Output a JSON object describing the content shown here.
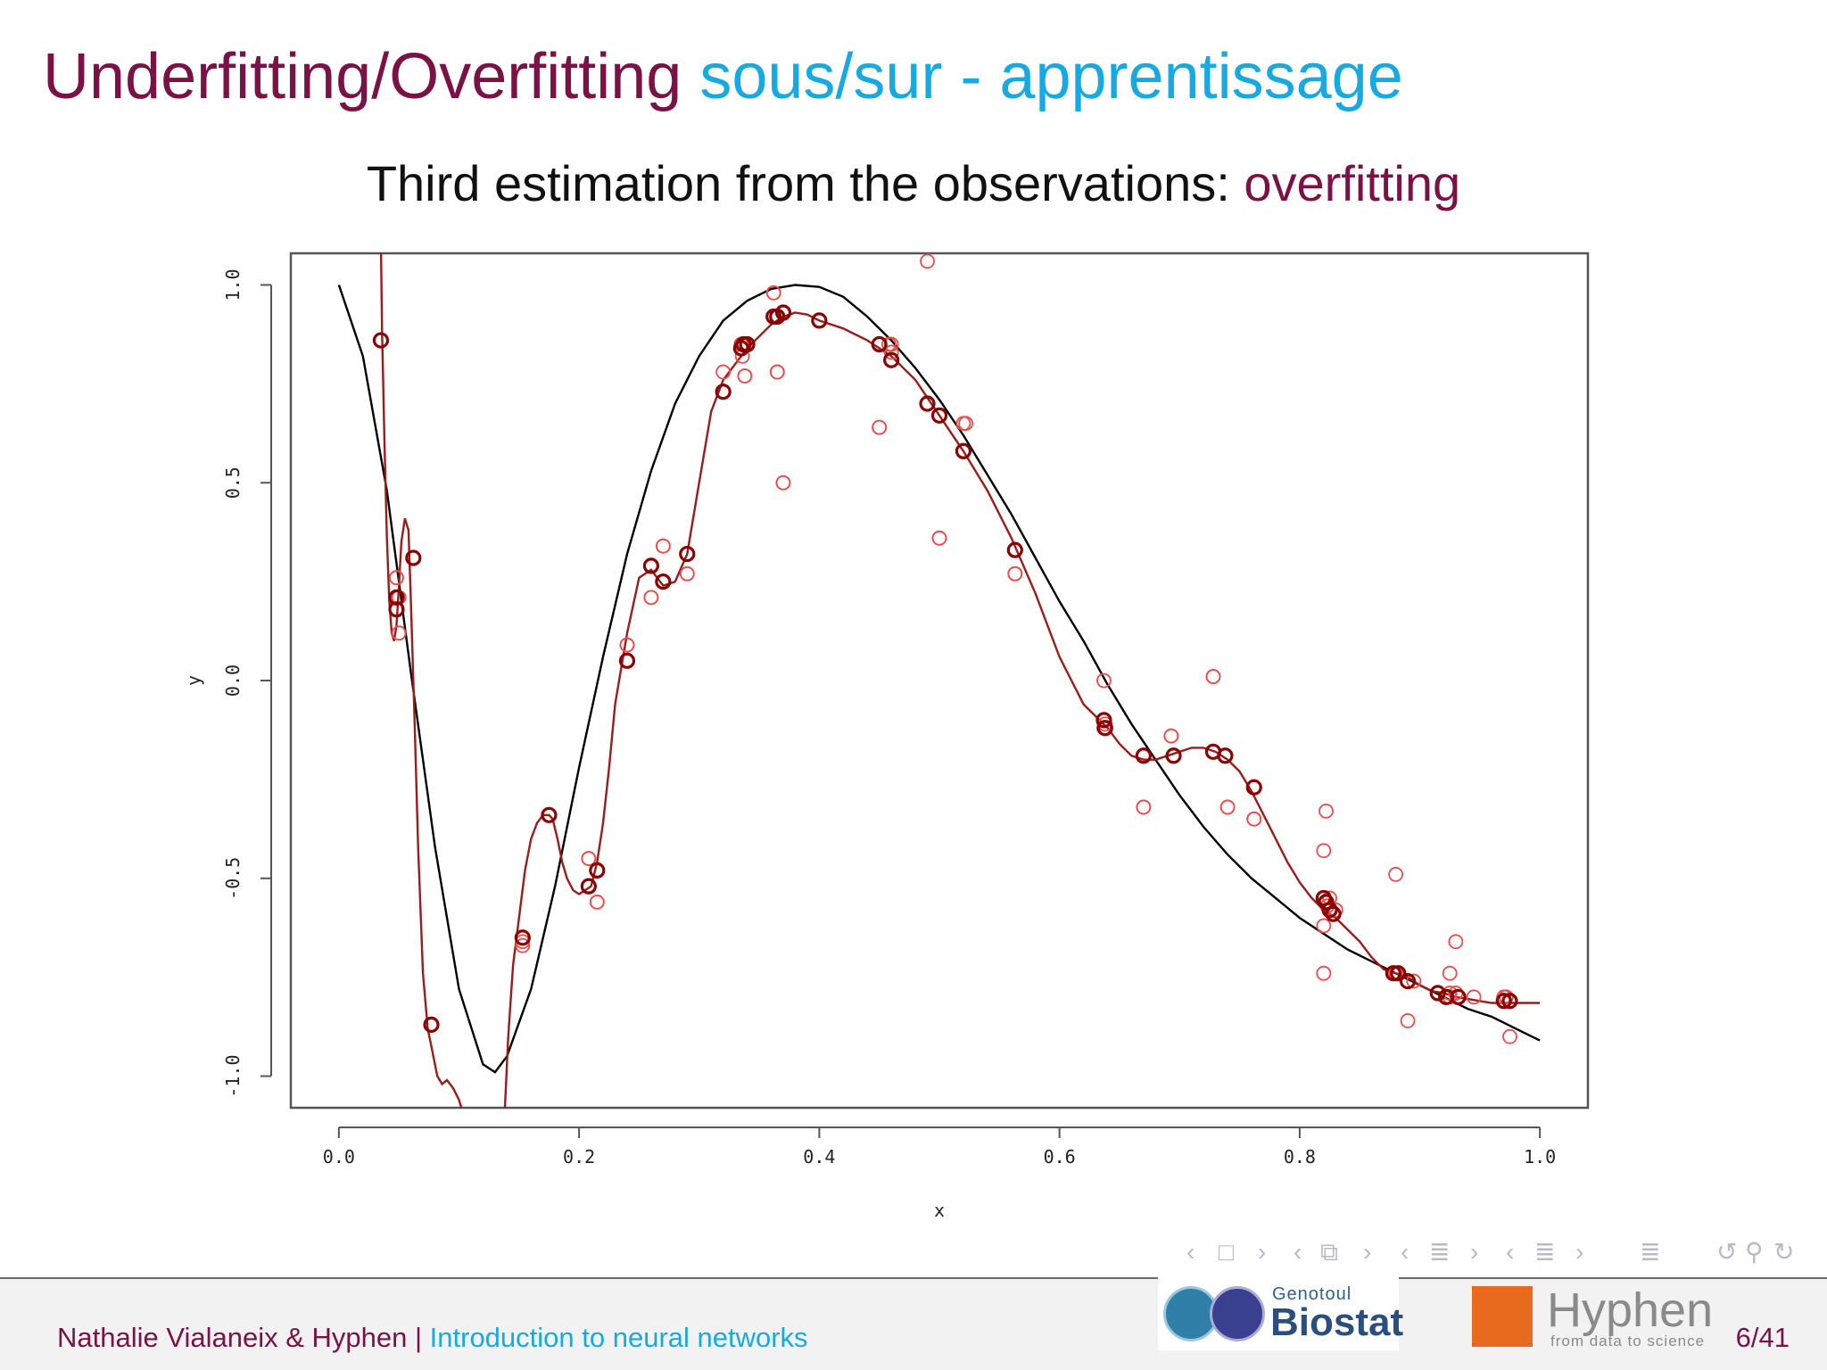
{
  "title": {
    "part1": "Underfitting/Overfitting",
    "part2": "sous/sur - apprentissage"
  },
  "subtitle": {
    "text": "Third estimation from the observations: ",
    "highlight": "overfitting"
  },
  "chart_data": {
    "type": "scatter",
    "title": "",
    "xlabel": "x",
    "ylabel": "y",
    "xlim": [
      -0.04,
      1.04
    ],
    "ylim": [
      -1.08,
      1.08
    ],
    "xticks": [
      "0.0",
      "0.2",
      "0.4",
      "0.6",
      "0.8",
      "1.0"
    ],
    "yticks": [
      "-1.0",
      "-0.5",
      "0.0",
      "0.5",
      "1.0"
    ],
    "colors": {
      "true_curve": "#000000",
      "fit_curve": "#9b1c1c",
      "observed": "#ef4a4a",
      "fitted": "#8b0000"
    },
    "series": [
      {
        "type": "line",
        "x": [
          0.0,
          0.02,
          0.04,
          0.06,
          0.08,
          0.1,
          0.12,
          0.13,
          0.14,
          0.16,
          0.18,
          0.2,
          0.22,
          0.24,
          0.26,
          0.28,
          0.3,
          0.32,
          0.34,
          0.36,
          0.38,
          0.4,
          0.42,
          0.44,
          0.46,
          0.48,
          0.5,
          0.52,
          0.54,
          0.56,
          0.58,
          0.6,
          0.62,
          0.64,
          0.66,
          0.68,
          0.7,
          0.72,
          0.74,
          0.76,
          0.78,
          0.8,
          0.82,
          0.84,
          0.86,
          0.88,
          0.9,
          0.92,
          0.94,
          0.96,
          0.98,
          1.0
        ],
        "y": [
          1.0,
          0.82,
          0.48,
          0.02,
          -0.42,
          -0.78,
          -0.97,
          -0.99,
          -0.95,
          -0.78,
          -0.52,
          -0.22,
          0.06,
          0.32,
          0.53,
          0.7,
          0.82,
          0.91,
          0.96,
          0.99,
          1.0,
          0.995,
          0.97,
          0.92,
          0.86,
          0.79,
          0.71,
          0.62,
          0.52,
          0.42,
          0.31,
          0.2,
          0.1,
          -0.01,
          -0.11,
          -0.2,
          -0.29,
          -0.37,
          -0.44,
          -0.5,
          -0.55,
          -0.6,
          -0.64,
          -0.68,
          -0.71,
          -0.74,
          -0.77,
          -0.8,
          -0.83,
          -0.85,
          -0.88,
          -0.91
        ]
      },
      {
        "type": "line",
        "x": [
          0.035,
          0.036,
          0.038,
          0.04,
          0.042,
          0.044,
          0.046,
          0.048,
          0.05,
          0.052,
          0.055,
          0.058,
          0.06,
          0.063,
          0.066,
          0.07,
          0.074,
          0.078,
          0.082,
          0.086,
          0.09,
          0.095,
          0.1,
          0.104
        ],
        "y": [
          1.1,
          0.88,
          0.6,
          0.36,
          0.2,
          0.12,
          0.1,
          0.14,
          0.24,
          0.35,
          0.41,
          0.38,
          0.2,
          -0.1,
          -0.42,
          -0.74,
          -0.88,
          -0.94,
          -1.0,
          -1.02,
          -1.01,
          -1.03,
          -1.06,
          -1.1
        ]
      },
      {
        "type": "line",
        "x": [
          0.138,
          0.141,
          0.145,
          0.15,
          0.155,
          0.16,
          0.165,
          0.17,
          0.175,
          0.178,
          0.182,
          0.186,
          0.19,
          0.195,
          0.2,
          0.205,
          0.21,
          0.215,
          0.22,
          0.225,
          0.23,
          0.24,
          0.25,
          0.26,
          0.27,
          0.28,
          0.29,
          0.3,
          0.31,
          0.32,
          0.33,
          0.34,
          0.35,
          0.36,
          0.37,
          0.38,
          0.39,
          0.4,
          0.42,
          0.44,
          0.46,
          0.48,
          0.5,
          0.52,
          0.54,
          0.56,
          0.58,
          0.6,
          0.62,
          0.63,
          0.64,
          0.65,
          0.66,
          0.67,
          0.68,
          0.69,
          0.7,
          0.71,
          0.72,
          0.73,
          0.74,
          0.75,
          0.76,
          0.77,
          0.78,
          0.79,
          0.8,
          0.81,
          0.82,
          0.83,
          0.84,
          0.85,
          0.86,
          0.87,
          0.88,
          0.89,
          0.9,
          0.91,
          0.92,
          0.93,
          0.94,
          0.95,
          0.96,
          0.97,
          0.98,
          0.99,
          1.0
        ],
        "y": [
          -1.1,
          -0.9,
          -0.72,
          -0.6,
          -0.48,
          -0.4,
          -0.36,
          -0.34,
          -0.34,
          -0.35,
          -0.4,
          -0.46,
          -0.5,
          -0.53,
          -0.54,
          -0.53,
          -0.52,
          -0.46,
          -0.36,
          -0.22,
          -0.06,
          0.12,
          0.26,
          0.28,
          0.24,
          0.25,
          0.32,
          0.5,
          0.68,
          0.76,
          0.8,
          0.84,
          0.87,
          0.9,
          0.92,
          0.93,
          0.925,
          0.91,
          0.89,
          0.86,
          0.82,
          0.76,
          0.67,
          0.58,
          0.48,
          0.36,
          0.22,
          0.06,
          -0.06,
          -0.09,
          -0.12,
          -0.16,
          -0.19,
          -0.2,
          -0.2,
          -0.19,
          -0.18,
          -0.17,
          -0.17,
          -0.18,
          -0.2,
          -0.23,
          -0.28,
          -0.34,
          -0.4,
          -0.46,
          -0.51,
          -0.55,
          -0.58,
          -0.6,
          -0.63,
          -0.66,
          -0.7,
          -0.73,
          -0.74,
          -0.75,
          -0.77,
          -0.785,
          -0.79,
          -0.8,
          -0.805,
          -0.81,
          -0.815,
          -0.815,
          -0.815,
          -0.815,
          -0.815
        ]
      },
      {
        "type": "scatter",
        "x": [
          0.035,
          0.048,
          0.05,
          0.05,
          0.062,
          0.077,
          0.153,
          0.175,
          0.208,
          0.215,
          0.24,
          0.26,
          0.27,
          0.29,
          0.32,
          0.335,
          0.336,
          0.338,
          0.34,
          0.362,
          0.365,
          0.37,
          0.49,
          0.458,
          0.46,
          0.45,
          0.5,
          0.52,
          0.563,
          0.637,
          0.637,
          0.638,
          0.67,
          0.693,
          0.728,
          0.74,
          0.762,
          0.82,
          0.822,
          0.823,
          0.825,
          0.83,
          0.88,
          0.88,
          0.89,
          0.925,
          0.93,
          0.93,
          0.975,
          0.97,
          0.972,
          0.975,
          0.88,
          0.895,
          0.925,
          0.945,
          0.925,
          0.825,
          0.82,
          0.82,
          0.728,
          0.74,
          0.762,
          0.693,
          0.67,
          0.637,
          0.563,
          0.5,
          0.45,
          0.522,
          0.46,
          0.37,
          0.365,
          0.362,
          0.335,
          0.338,
          0.27,
          0.26,
          0.24,
          0.29,
          0.208,
          0.215,
          0.153,
          0.05,
          0.048
        ],
        "y": [
          0.86,
          0.26,
          0.21,
          0.12,
          0.31,
          -0.87,
          -0.66,
          -0.34,
          -0.45,
          -0.56,
          0.09,
          0.21,
          0.34,
          0.27,
          0.78,
          0.85,
          0.82,
          0.77,
          0.85,
          0.98,
          0.78,
          0.5,
          1.06,
          0.85,
          0.83,
          0.64,
          0.36,
          0.65,
          0.27,
          0.0,
          -0.12,
          -0.11,
          -0.32,
          -0.14,
          0.01,
          -0.32,
          -0.35,
          -0.43,
          -0.33,
          -0.57,
          -0.55,
          -0.58,
          -0.49,
          -0.74,
          -0.86,
          -0.74,
          -0.79,
          -0.66,
          -0.9,
          -0.8,
          -0.8,
          -0.81,
          -0.74,
          -0.76,
          -0.79,
          -0.8,
          -0.8,
          -0.58,
          -0.74,
          -0.62,
          0.01,
          -0.32,
          -0.35,
          -0.14,
          -0.32,
          -0.12,
          0.27,
          0.36,
          0.64,
          0.65,
          0.85,
          0.5,
          0.78,
          0.98,
          0.85,
          0.77,
          0.34,
          0.21,
          0.09,
          0.27,
          -0.45,
          -0.56,
          -0.67,
          0.12,
          0.26
        ]
      },
      {
        "type": "scatter",
        "x": [
          0.035,
          0.048,
          0.048,
          0.062,
          0.077,
          0.153,
          0.175,
          0.208,
          0.215,
          0.24,
          0.26,
          0.27,
          0.29,
          0.32,
          0.335,
          0.337,
          0.34,
          0.362,
          0.365,
          0.37,
          0.4,
          0.45,
          0.46,
          0.49,
          0.5,
          0.52,
          0.563,
          0.637,
          0.638,
          0.67,
          0.695,
          0.728,
          0.738,
          0.762,
          0.82,
          0.822,
          0.825,
          0.828,
          0.878,
          0.882,
          0.89,
          0.915,
          0.922,
          0.932,
          0.97,
          0.975
        ],
        "y": [
          0.86,
          0.21,
          0.18,
          0.31,
          -0.87,
          -0.65,
          -0.34,
          -0.52,
          -0.48,
          0.05,
          0.29,
          0.25,
          0.32,
          0.73,
          0.84,
          0.85,
          0.85,
          0.92,
          0.92,
          0.93,
          0.91,
          0.85,
          0.81,
          0.7,
          0.67,
          0.58,
          0.33,
          -0.1,
          -0.12,
          -0.19,
          -0.19,
          -0.18,
          -0.19,
          -0.27,
          -0.55,
          -0.56,
          -0.58,
          -0.59,
          -0.74,
          -0.74,
          -0.76,
          -0.79,
          -0.8,
          -0.8,
          -0.81,
          -0.81
        ]
      }
    ]
  },
  "navigation": {
    "icons": [
      "arrow-left-icon",
      "frame-icon",
      "arrow-right-icon",
      "arrow-left-icon",
      "subsection-icon",
      "arrow-right-icon",
      "arrow-left-icon",
      "section-icon",
      "arrow-right-icon",
      "arrow-left-icon",
      "section-icon",
      "arrow-right-icon",
      "list-icon",
      "undo-icon",
      "search-icon",
      "redo-icon"
    ]
  },
  "footer": {
    "author": "Nathalie Vialaneix & Hyphen",
    "separator": "|",
    "talk": "Introduction to neural networks",
    "page": "6/41",
    "logo_biostat": {
      "small": "Genotoul",
      "big": "Biostat"
    },
    "logo_hyphen": {
      "word": "Hyphen",
      "tagline": "from data to science"
    }
  }
}
